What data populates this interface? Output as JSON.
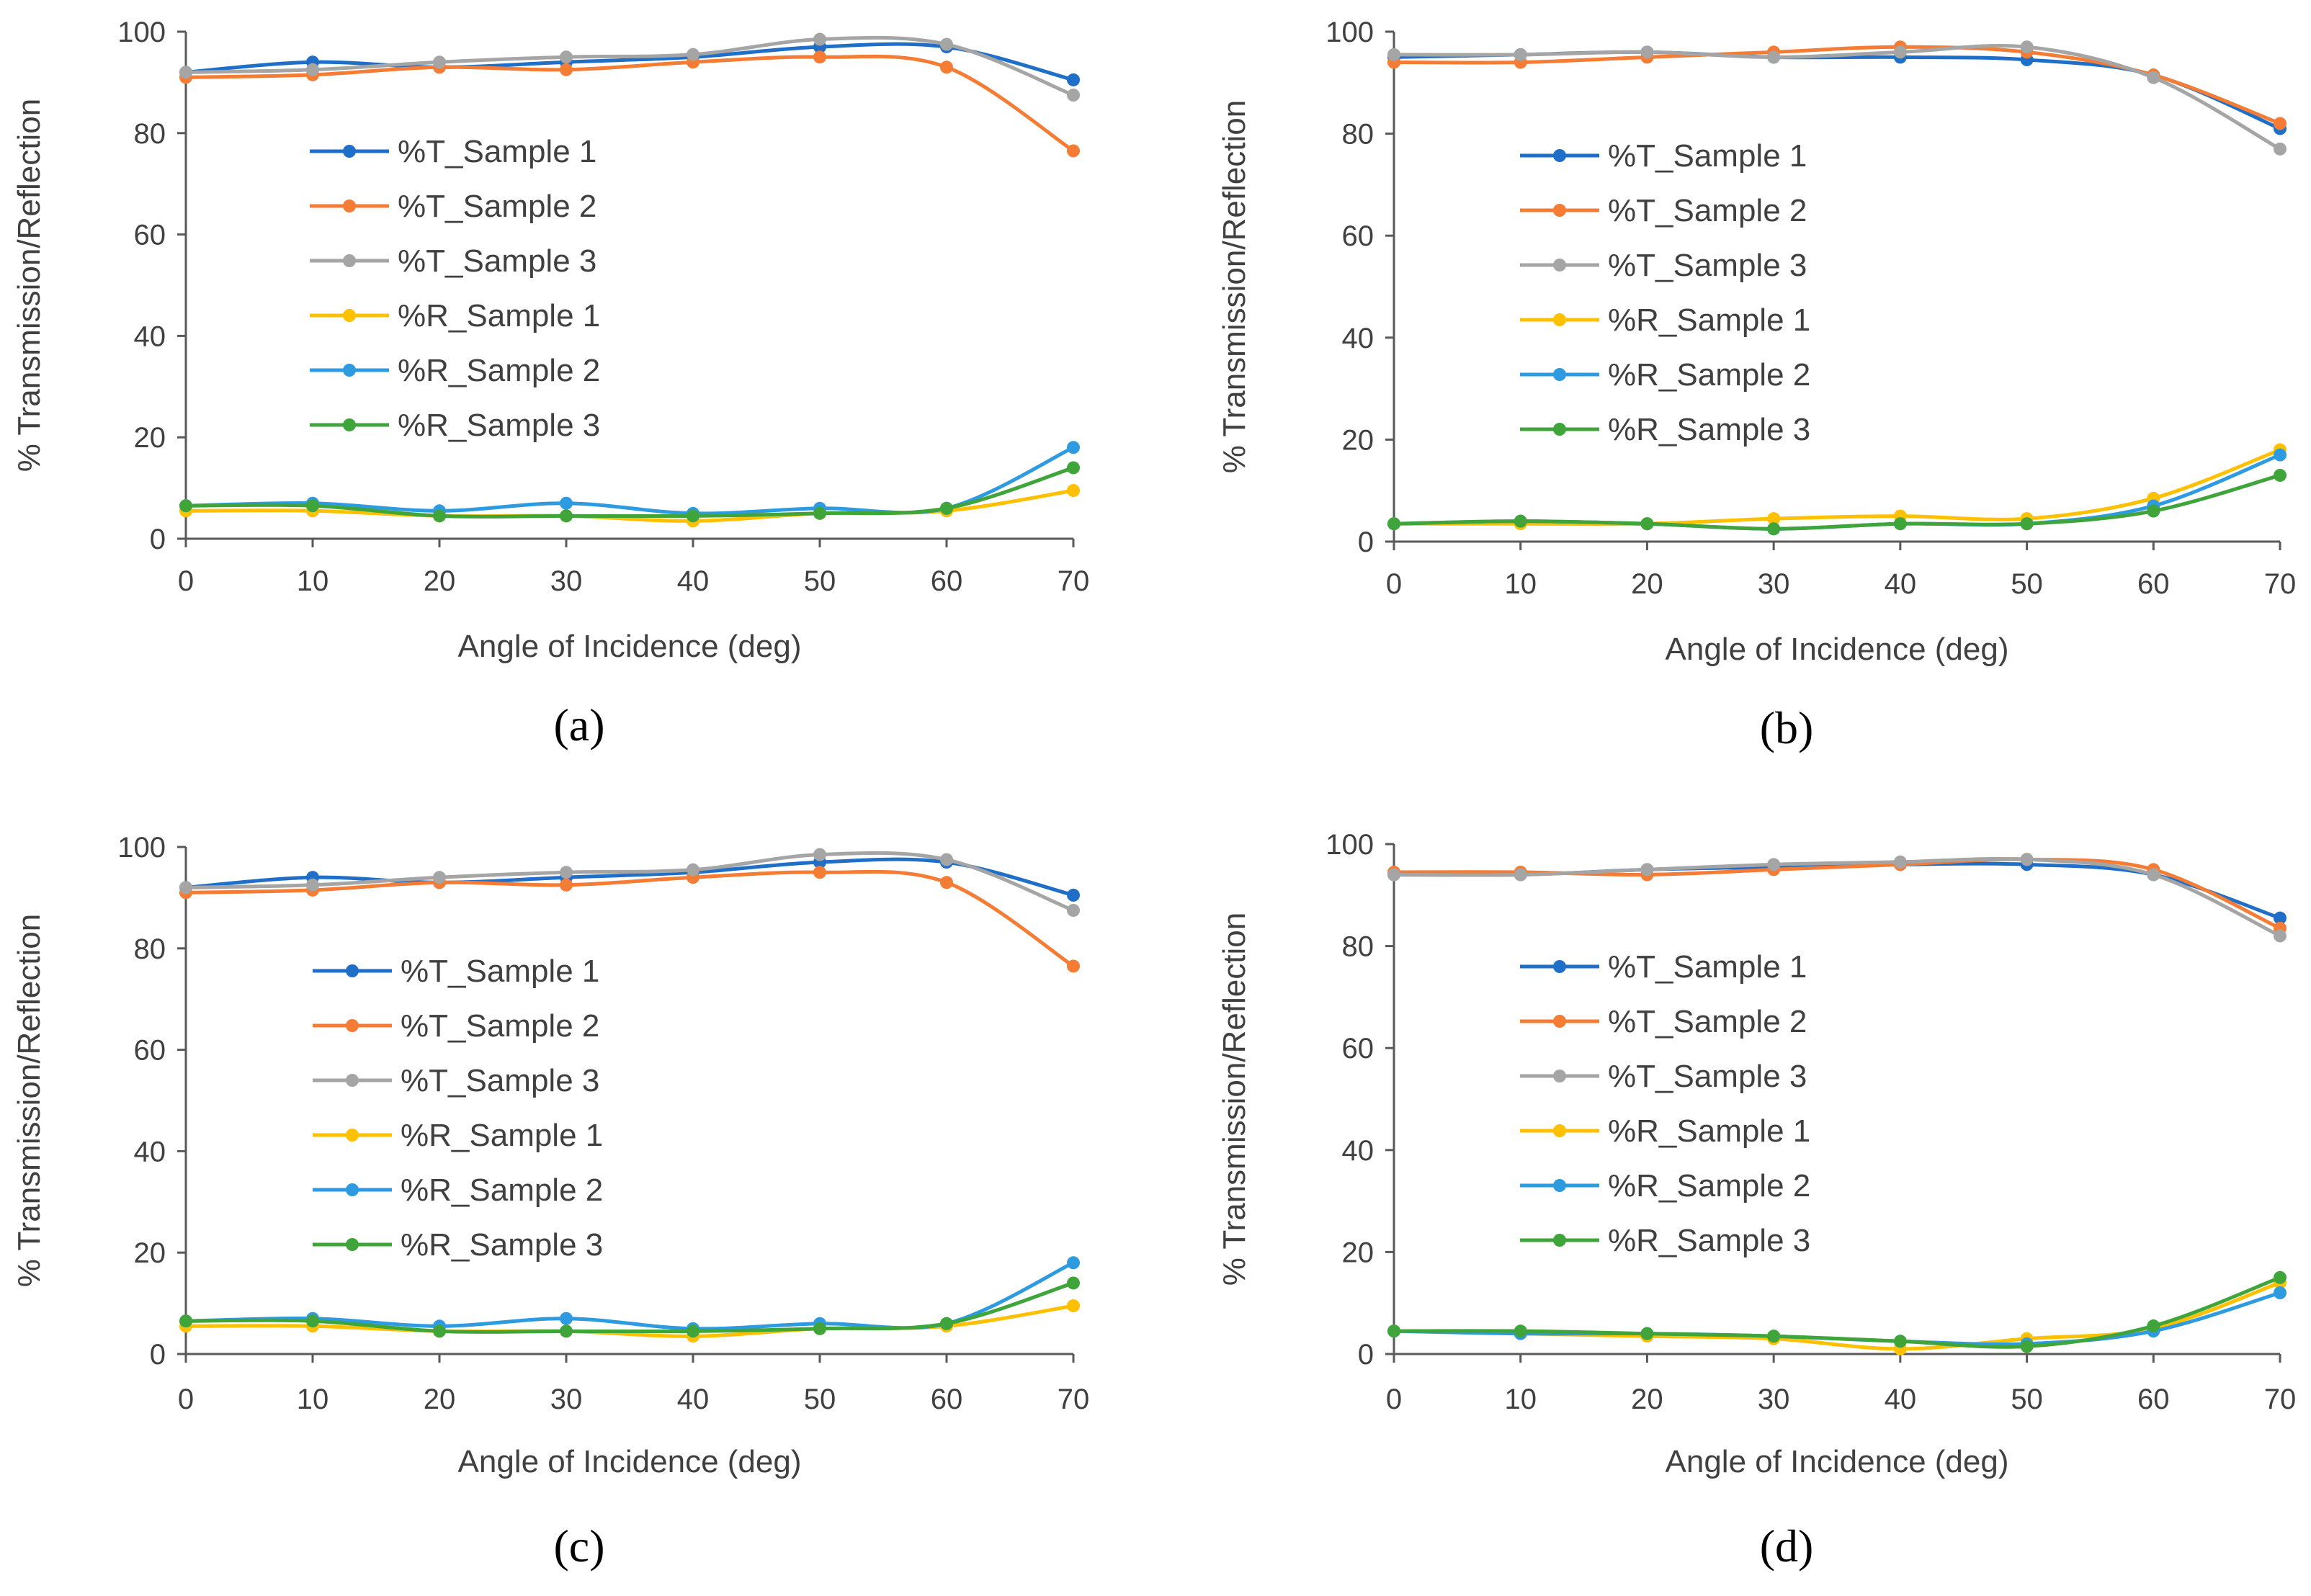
{
  "figure": {
    "x_axis_label": "Angle of Incidence (deg)",
    "y_axis_label": "% Transmission/Reflection",
    "x_ticks": [
      "0",
      "10",
      "20",
      "30",
      "40",
      "50",
      "60",
      "70"
    ],
    "y_ticks": [
      "0",
      "20",
      "40",
      "60",
      "80",
      "100"
    ]
  },
  "colors": {
    "%T_Sample 1": "#1F6FC8",
    "%T_Sample 2": "#F47C34",
    "%T_Sample 3": "#A5A5A5",
    "%R_Sample 1": "#FFC000",
    "%R_Sample 2": "#2E9BE0",
    "%R_Sample 3": "#3FA43A"
  },
  "chart_data": [
    {
      "panel_label": "(a)",
      "type": "line",
      "xlabel": "Angle of Incidence (deg)",
      "ylabel": "% Transmission/Reflection",
      "xlim": [
        0,
        70
      ],
      "ylim": [
        0,
        100
      ],
      "grid": false,
      "legend_position": "inside-left",
      "x": [
        0,
        10,
        20,
        30,
        40,
        50,
        60,
        70
      ],
      "series": [
        {
          "name": "%T_Sample 1",
          "values": [
            92,
            94,
            93,
            94,
            95,
            97,
            97,
            90.5
          ]
        },
        {
          "name": "%T_Sample 2",
          "values": [
            91,
            91.5,
            93,
            92.5,
            94,
            95,
            93,
            76.5
          ]
        },
        {
          "name": "%T_Sample 3",
          "values": [
            92,
            92.5,
            94,
            95,
            95.5,
            98.5,
            97.5,
            87.5
          ]
        },
        {
          "name": "%R_Sample 1",
          "values": [
            5.5,
            5.5,
            4.5,
            4.5,
            3.5,
            5,
            5.5,
            9.5
          ]
        },
        {
          "name": "%R_Sample 2",
          "values": [
            6.5,
            7,
            5.5,
            7,
            5,
            6,
            6,
            18
          ]
        },
        {
          "name": "%R_Sample 3",
          "values": [
            6.5,
            6.5,
            4.5,
            4.5,
            4.5,
            5,
            6,
            14
          ]
        }
      ]
    },
    {
      "panel_label": "(b)",
      "type": "line",
      "xlabel": "Angle of Incidence (deg)",
      "ylabel": "% Transmission/Reflection",
      "xlim": [
        0,
        70
      ],
      "ylim": [
        0,
        100
      ],
      "grid": false,
      "legend_position": "inside-left",
      "x": [
        0,
        10,
        20,
        30,
        40,
        50,
        60,
        70
      ],
      "series": [
        {
          "name": "%T_Sample 1",
          "values": [
            95,
            95.5,
            96,
            95,
            95,
            94.5,
            91.5,
            81
          ]
        },
        {
          "name": "%T_Sample 2",
          "values": [
            94,
            94,
            95,
            96,
            97,
            96,
            91.5,
            82
          ]
        },
        {
          "name": "%T_Sample 3",
          "values": [
            95.5,
            95.5,
            96,
            95,
            96,
            97,
            91,
            77
          ]
        },
        {
          "name": "%R_Sample 1",
          "values": [
            3.5,
            3.5,
            3.5,
            4.5,
            5,
            4.5,
            8.5,
            18
          ]
        },
        {
          "name": "%R_Sample 2",
          "values": [
            3.5,
            4,
            3.5,
            2.5,
            3.5,
            3.5,
            7,
            17
          ]
        },
        {
          "name": "%R_Sample 3",
          "values": [
            3.5,
            4,
            3.5,
            2.5,
            3.5,
            3.5,
            6,
            13
          ]
        }
      ]
    },
    {
      "panel_label": "(c)",
      "type": "line",
      "xlabel": "Angle of Incidence (deg)",
      "ylabel": "% Transmission/Reflection",
      "xlim": [
        0,
        70
      ],
      "ylim": [
        0,
        100
      ],
      "grid": false,
      "legend_position": "inside-left",
      "x": [
        0,
        10,
        20,
        30,
        40,
        50,
        60,
        70
      ],
      "series": [
        {
          "name": "%T_Sample 1",
          "values": [
            92,
            94,
            93,
            94,
            95,
            97,
            97,
            90.5
          ]
        },
        {
          "name": "%T_Sample 2",
          "values": [
            91,
            91.5,
            93,
            92.5,
            94,
            95,
            93,
            76.5
          ]
        },
        {
          "name": "%T_Sample 3",
          "values": [
            92,
            92.5,
            94,
            95,
            95.5,
            98.5,
            97.5,
            87.5
          ]
        },
        {
          "name": "%R_Sample 1",
          "values": [
            5.5,
            5.5,
            4.5,
            4.5,
            3.5,
            5,
            5.5,
            9.5
          ]
        },
        {
          "name": "%R_Sample 2",
          "values": [
            6.5,
            7,
            5.5,
            7,
            5,
            6,
            6,
            18
          ]
        },
        {
          "name": "%R_Sample 3",
          "values": [
            6.5,
            6.5,
            4.5,
            4.5,
            4.5,
            5,
            6,
            14
          ]
        }
      ]
    },
    {
      "panel_label": "(d)",
      "type": "line",
      "xlabel": "Angle of Incidence (deg)",
      "ylabel": "% Transmission/Reflection",
      "xlim": [
        0,
        70
      ],
      "ylim": [
        0,
        100
      ],
      "grid": false,
      "legend_position": "inside-left",
      "x": [
        0,
        10,
        20,
        30,
        40,
        50,
        60,
        70
      ],
      "series": [
        {
          "name": "%T_Sample 1",
          "values": [
            94,
            94,
            95,
            95.5,
            96,
            96,
            94,
            85.5
          ]
        },
        {
          "name": "%T_Sample 2",
          "values": [
            94.5,
            94.5,
            94,
            95,
            96,
            97,
            95,
            83.5
          ]
        },
        {
          "name": "%T_Sample 3",
          "values": [
            94,
            94,
            95,
            96,
            96.5,
            97,
            94,
            82
          ]
        },
        {
          "name": "%R_Sample 1",
          "values": [
            4.5,
            4,
            3.5,
            3,
            1,
            3,
            5,
            14
          ]
        },
        {
          "name": "%R_Sample 2",
          "values": [
            4.5,
            4,
            4,
            3.5,
            2.5,
            2,
            4.5,
            12
          ]
        },
        {
          "name": "%R_Sample 3",
          "values": [
            4.5,
            4.5,
            4,
            3.5,
            2.5,
            1.5,
            5.5,
            15
          ]
        }
      ]
    }
  ]
}
